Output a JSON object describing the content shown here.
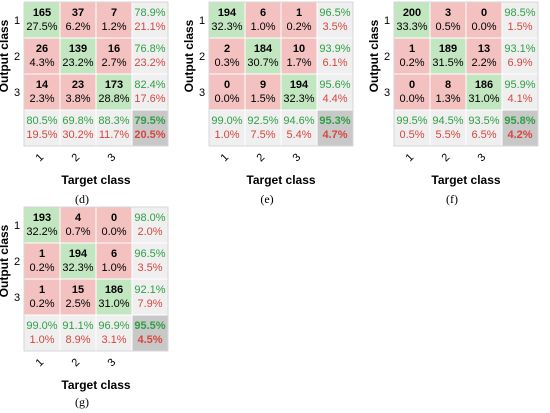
{
  "chart_data": [
    {
      "type": "heatmap",
      "panel": "(d)",
      "xlabel": "Target class",
      "ylabel": "Output class",
      "x_ticks": [
        "1",
        "2",
        "3"
      ],
      "y_ticks": [
        "1",
        "2",
        "3"
      ],
      "matrix": [
        [
          {
            "count": "165",
            "pct": "27.5%"
          },
          {
            "count": "37",
            "pct": "6.2%"
          },
          {
            "count": "7",
            "pct": "1.2%"
          }
        ],
        [
          {
            "count": "26",
            "pct": "4.3%"
          },
          {
            "count": "139",
            "pct": "23.2%"
          },
          {
            "count": "16",
            "pct": "2.7%"
          }
        ],
        [
          {
            "count": "14",
            "pct": "2.3%"
          },
          {
            "count": "23",
            "pct": "3.8%"
          },
          {
            "count": "173",
            "pct": "28.8%"
          }
        ]
      ],
      "row_summary": [
        {
          "correct": "78.9%",
          "error": "21.1%"
        },
        {
          "correct": "76.8%",
          "error": "23.2%"
        },
        {
          "correct": "82.4%",
          "error": "17.6%"
        }
      ],
      "col_summary": [
        {
          "correct": "80.5%",
          "error": "19.5%"
        },
        {
          "correct": "69.8%",
          "error": "30.2%"
        },
        {
          "correct": "88.3%",
          "error": "11.7%"
        }
      ],
      "overall": {
        "correct": "79.5%",
        "error": "20.5%"
      }
    },
    {
      "type": "heatmap",
      "panel": "(e)",
      "xlabel": "Target class",
      "ylabel": "Output class",
      "x_ticks": [
        "1",
        "2",
        "3"
      ],
      "y_ticks": [
        "1",
        "2",
        "3"
      ],
      "matrix": [
        [
          {
            "count": "194",
            "pct": "32.3%"
          },
          {
            "count": "6",
            "pct": "1.0%"
          },
          {
            "count": "1",
            "pct": "0.2%"
          }
        ],
        [
          {
            "count": "2",
            "pct": "0.3%"
          },
          {
            "count": "184",
            "pct": "30.7%"
          },
          {
            "count": "10",
            "pct": "1.7%"
          }
        ],
        [
          {
            "count": "0",
            "pct": "0.0%"
          },
          {
            "count": "9",
            "pct": "1.5%"
          },
          {
            "count": "194",
            "pct": "32.3%"
          }
        ]
      ],
      "row_summary": [
        {
          "correct": "96.5%",
          "error": "3.5%"
        },
        {
          "correct": "93.9%",
          "error": "6.1%"
        },
        {
          "correct": "95.6%",
          "error": "4.4%"
        }
      ],
      "col_summary": [
        {
          "correct": "99.0%",
          "error": "1.0%"
        },
        {
          "correct": "92.5%",
          "error": "7.5%"
        },
        {
          "correct": "94.6%",
          "error": "5.4%"
        }
      ],
      "overall": {
        "correct": "95.3%",
        "error": "4.7%"
      }
    },
    {
      "type": "heatmap",
      "panel": "(f)",
      "xlabel": "Target class",
      "ylabel": "Output class",
      "x_ticks": [
        "1",
        "2",
        "3"
      ],
      "y_ticks": [
        "1",
        "2",
        "3"
      ],
      "matrix": [
        [
          {
            "count": "200",
            "pct": "33.3%"
          },
          {
            "count": "3",
            "pct": "0.5%"
          },
          {
            "count": "0",
            "pct": "0.0%"
          }
        ],
        [
          {
            "count": "1",
            "pct": "0.2%"
          },
          {
            "count": "189",
            "pct": "31.5%"
          },
          {
            "count": "13",
            "pct": "2.2%"
          }
        ],
        [
          {
            "count": "0",
            "pct": "0.0%"
          },
          {
            "count": "8",
            "pct": "1.3%"
          },
          {
            "count": "186",
            "pct": "31.0%"
          }
        ]
      ],
      "row_summary": [
        {
          "correct": "98.5%",
          "error": "1.5%"
        },
        {
          "correct": "93.1%",
          "error": "6.9%"
        },
        {
          "correct": "95.9%",
          "error": "4.1%"
        }
      ],
      "col_summary": [
        {
          "correct": "99.5%",
          "error": "0.5%"
        },
        {
          "correct": "94.5%",
          "error": "5.5%"
        },
        {
          "correct": "93.5%",
          "error": "6.5%"
        }
      ],
      "overall": {
        "correct": "95.8%",
        "error": "4.2%"
      }
    },
    {
      "type": "heatmap",
      "panel": "(g)",
      "xlabel": "Target class",
      "ylabel": "Output class",
      "x_ticks": [
        "1",
        "2",
        "3"
      ],
      "y_ticks": [
        "1",
        "2",
        "3"
      ],
      "matrix": [
        [
          {
            "count": "193",
            "pct": "32.2%"
          },
          {
            "count": "4",
            "pct": "0.7%"
          },
          {
            "count": "0",
            "pct": "0.0%"
          }
        ],
        [
          {
            "count": "1",
            "pct": "0.2%"
          },
          {
            "count": "194",
            "pct": "32.3%"
          },
          {
            "count": "6",
            "pct": "1.0%"
          }
        ],
        [
          {
            "count": "1",
            "pct": "0.2%"
          },
          {
            "count": "15",
            "pct": "2.5%"
          },
          {
            "count": "186",
            "pct": "31.0%"
          }
        ]
      ],
      "row_summary": [
        {
          "correct": "98.0%",
          "error": "2.0%"
        },
        {
          "correct": "96.5%",
          "error": "3.5%"
        },
        {
          "correct": "92.1%",
          "error": "7.9%"
        }
      ],
      "col_summary": [
        {
          "correct": "99.0%",
          "error": "1.0%"
        },
        {
          "correct": "91.1%",
          "error": "8.9%"
        },
        {
          "correct": "96.9%",
          "error": "3.1%"
        }
      ],
      "overall": {
        "correct": "95.5%",
        "error": "4.5%"
      }
    }
  ],
  "colors": {
    "diagonal": "#c2e6c0",
    "offdiag": "#f2c1c0",
    "summary": "#efefef",
    "overall": "#c8c8c8",
    "correct_text": "#2ea044",
    "error_text": "#d9453f",
    "grid": "#ffffff"
  }
}
